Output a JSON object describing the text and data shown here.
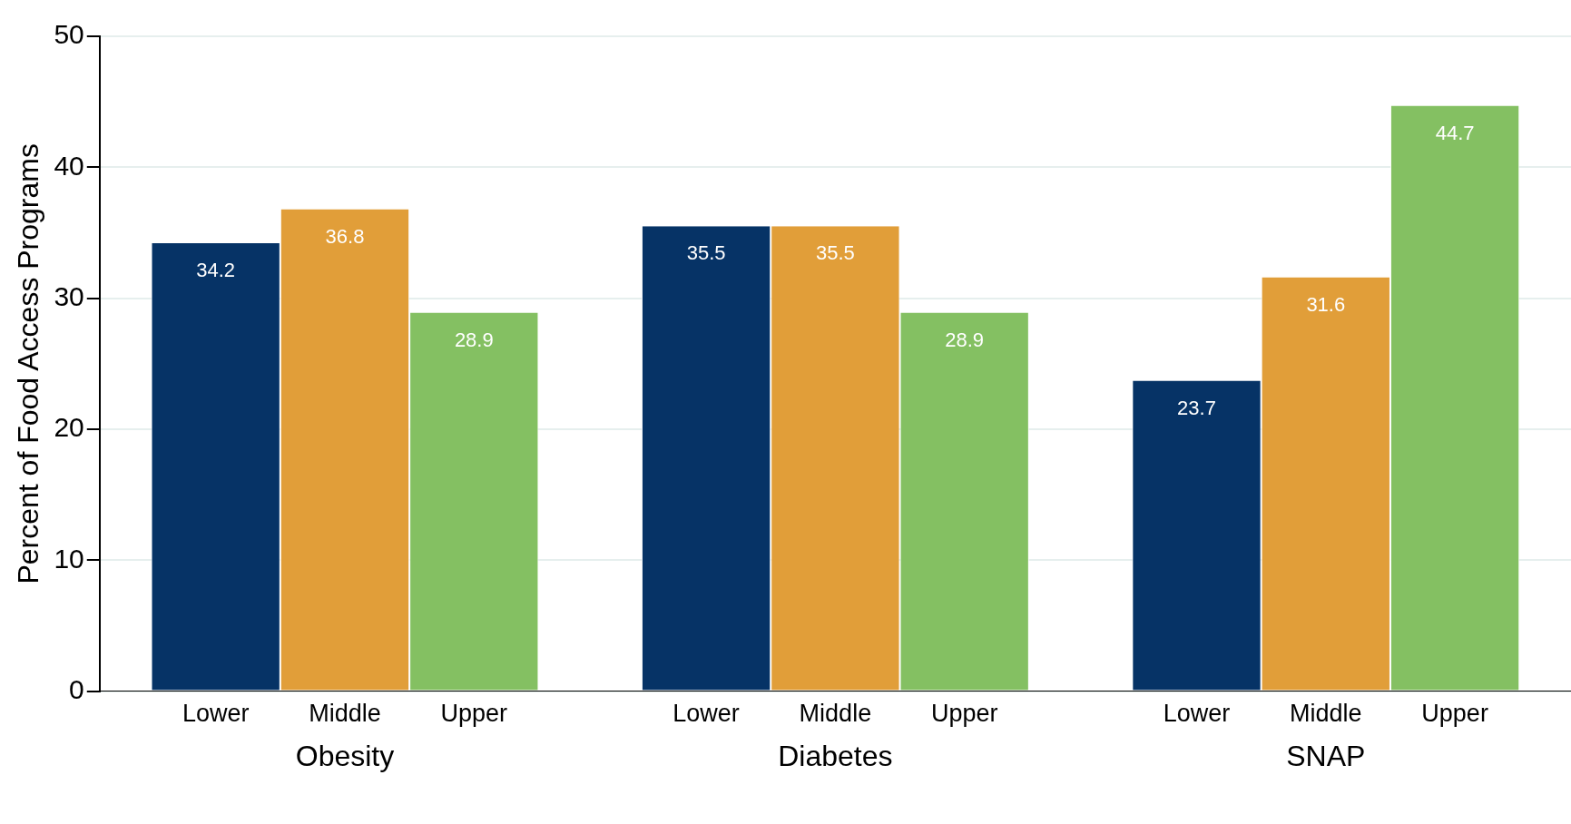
{
  "chart_data": {
    "type": "bar",
    "categories": [
      "Obesity",
      "Diabetes",
      "SNAP"
    ],
    "series": [
      {
        "name": "Lower",
        "color": "#063366",
        "values": [
          34.2,
          35.5,
          23.7
        ]
      },
      {
        "name": "Middle",
        "color": "#e19e39",
        "values": [
          36.8,
          35.5,
          31.6
        ]
      },
      {
        "name": "Upper",
        "color": "#84c062",
        "values": [
          28.9,
          28.9,
          44.7
        ]
      }
    ],
    "ylabel": "Percent of Food Access Programs",
    "ylim": [
      0,
      50
    ],
    "yticks": [
      0,
      10,
      20,
      30,
      40,
      50
    ],
    "grid": "y",
    "legend": false,
    "data_labels": true
  }
}
